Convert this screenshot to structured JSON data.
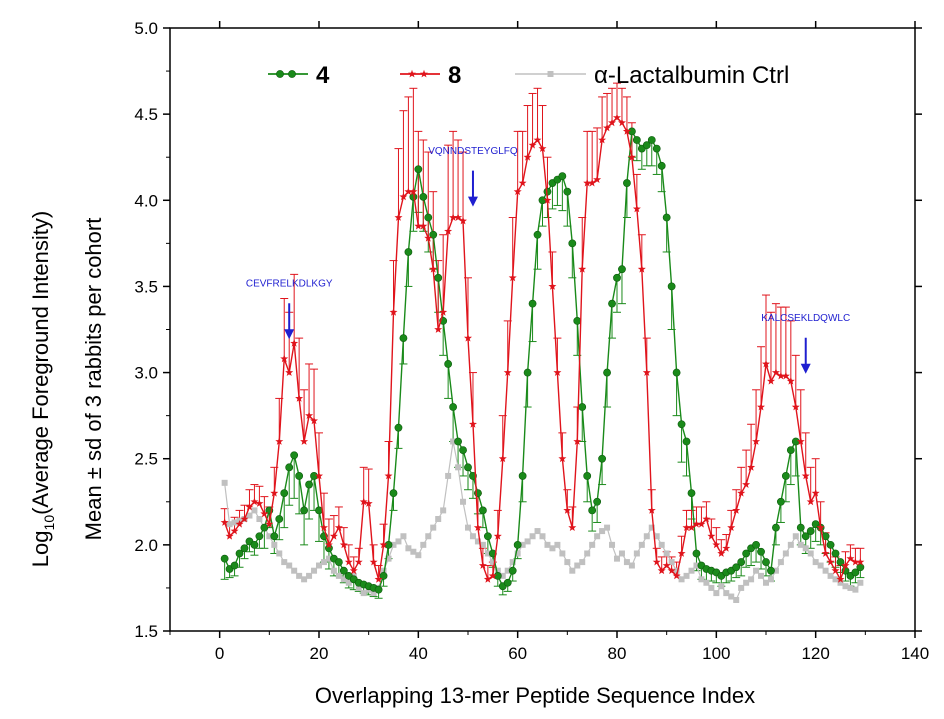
{
  "chart_data": {
    "type": "line",
    "xlabel": "Overlapping 13-mer Peptide Sequence Index",
    "ylabel_line1": "Log",
    "ylabel_sub": "10",
    "ylabel_line1_rest": "(Average Foreground Intensity)",
    "ylabel_line2": "Mean ± sd of 3 rabbits per cohort",
    "xlim": [
      -10,
      140
    ],
    "ylim": [
      1.5,
      5.0
    ],
    "xticks": [
      0,
      20,
      40,
      60,
      80,
      100,
      120,
      140
    ],
    "yticks": [
      1.5,
      2.0,
      2.5,
      3.0,
      3.5,
      4.0,
      4.5,
      5.0
    ],
    "xtick_labels": [
      "0",
      "20",
      "40",
      "60",
      "80",
      "100",
      "120",
      "140"
    ],
    "ytick_labels": [
      "1.5",
      "2.0",
      "2.5",
      "3.0",
      "3.5",
      "4.0",
      "4.5",
      "5.0"
    ],
    "legend_placement": "top",
    "series": [
      {
        "name": "4",
        "color": "#1a8a1a",
        "marker": "circle",
        "x": [
          1,
          2,
          3,
          4,
          5,
          6,
          7,
          8,
          9,
          10,
          11,
          12,
          13,
          14,
          15,
          16,
          17,
          18,
          19,
          20,
          21,
          22,
          23,
          24,
          25,
          26,
          27,
          28,
          29,
          30,
          31,
          32,
          33,
          34,
          35,
          36,
          37,
          38,
          39,
          40,
          41,
          42,
          43,
          44,
          45,
          46,
          47,
          48,
          49,
          50,
          51,
          52,
          53,
          54,
          55,
          56,
          57,
          58,
          59,
          60,
          61,
          62,
          63,
          64,
          65,
          66,
          67,
          68,
          69,
          70,
          71,
          72,
          73,
          74,
          75,
          76,
          77,
          78,
          79,
          80,
          81,
          82,
          83,
          84,
          85,
          86,
          87,
          88,
          89,
          90,
          91,
          92,
          93,
          94,
          95,
          96,
          97,
          98,
          99,
          100,
          101,
          102,
          103,
          104,
          105,
          106,
          107,
          108,
          109,
          110,
          111,
          112,
          113,
          114,
          115,
          116,
          117,
          118,
          119,
          120,
          121,
          122,
          123,
          124,
          125,
          126,
          127,
          128,
          129
        ],
        "y": [
          1.92,
          1.86,
          1.88,
          1.95,
          1.98,
          2.02,
          2.0,
          2.05,
          2.1,
          2.2,
          2.05,
          2.15,
          2.3,
          2.45,
          2.52,
          2.4,
          2.2,
          2.35,
          2.4,
          2.2,
          2.05,
          1.98,
          1.92,
          1.9,
          1.85,
          1.82,
          1.8,
          1.78,
          1.77,
          1.76,
          1.75,
          1.74,
          1.82,
          2.0,
          2.3,
          2.68,
          3.2,
          3.7,
          4.02,
          4.18,
          4.02,
          3.9,
          3.8,
          3.55,
          3.3,
          3.05,
          2.8,
          2.6,
          2.55,
          2.45,
          2.4,
          2.3,
          2.2,
          2.05,
          1.95,
          1.82,
          1.76,
          1.78,
          1.85,
          2.0,
          2.4,
          3.0,
          3.4,
          3.8,
          4.0,
          4.05,
          4.1,
          4.12,
          4.14,
          4.05,
          3.75,
          3.3,
          2.8,
          2.4,
          2.2,
          2.25,
          2.5,
          3.0,
          3.4,
          3.55,
          3.6,
          4.1,
          4.4,
          4.35,
          4.3,
          4.32,
          4.35,
          4.3,
          4.2,
          3.9,
          3.5,
          3.0,
          2.7,
          2.6,
          2.3,
          1.95,
          1.88,
          1.86,
          1.85,
          1.84,
          1.82,
          1.84,
          1.85,
          1.87,
          1.9,
          1.95,
          1.98,
          2.0,
          1.96,
          1.9,
          1.85,
          2.1,
          2.25,
          2.4,
          2.55,
          2.6,
          2.1,
          2.05,
          2.08,
          2.12,
          2.1,
          2.05,
          2.0,
          1.95,
          1.9,
          1.85,
          1.82,
          1.84,
          1.87
        ],
        "sd": [
          0.12,
          0.05,
          0.06,
          0.08,
          0.06,
          0.06,
          0.06,
          0.07,
          0.12,
          0.1,
          0.1,
          0.12,
          0.2,
          0.22,
          0.25,
          0.22,
          0.2,
          0.2,
          0.2,
          0.18,
          0.15,
          0.12,
          0.1,
          0.08,
          0.07,
          0.07,
          0.06,
          0.05,
          0.05,
          0.05,
          0.05,
          0.05,
          0.06,
          0.08,
          0.1,
          0.12,
          0.15,
          0.2,
          0.2,
          0.25,
          0.2,
          0.2,
          0.2,
          0.2,
          0.2,
          0.2,
          0.2,
          0.15,
          0.15,
          0.13,
          0.13,
          0.12,
          0.1,
          0.1,
          0.08,
          0.06,
          0.05,
          0.05,
          0.06,
          0.08,
          0.15,
          0.2,
          0.22,
          0.2,
          0.15,
          0.15,
          0.15,
          0.15,
          0.2,
          0.2,
          0.2,
          0.2,
          0.2,
          0.15,
          0.12,
          0.12,
          0.15,
          0.2,
          0.2,
          0.2,
          0.2,
          0.2,
          0.15,
          0.12,
          0.12,
          0.12,
          0.15,
          0.15,
          0.15,
          0.2,
          0.25,
          0.25,
          0.22,
          0.2,
          0.15,
          0.1,
          0.08,
          0.07,
          0.06,
          0.06,
          0.06,
          0.06,
          0.06,
          0.06,
          0.08,
          0.08,
          0.1,
          0.1,
          0.1,
          0.08,
          0.06,
          0.1,
          0.12,
          0.15,
          0.2,
          0.2,
          0.1,
          0.1,
          0.1,
          0.1,
          0.1,
          0.1,
          0.1,
          0.08,
          0.06,
          0.06,
          0.06,
          0.06,
          0.06
        ]
      },
      {
        "name": "8",
        "color": "#e0141c",
        "marker": "star",
        "x": [
          1,
          2,
          3,
          4,
          5,
          6,
          7,
          8,
          9,
          10,
          11,
          12,
          13,
          14,
          15,
          16,
          17,
          18,
          19,
          20,
          21,
          22,
          23,
          24,
          25,
          26,
          27,
          28,
          29,
          30,
          31,
          32,
          33,
          34,
          35,
          36,
          37,
          38,
          39,
          40,
          41,
          42,
          43,
          44,
          45,
          46,
          47,
          48,
          49,
          50,
          51,
          52,
          53,
          54,
          55,
          56,
          57,
          58,
          59,
          60,
          61,
          62,
          63,
          64,
          65,
          66,
          67,
          68,
          69,
          70,
          71,
          72,
          73,
          74,
          75,
          76,
          77,
          78,
          79,
          80,
          81,
          82,
          83,
          84,
          85,
          86,
          87,
          88,
          89,
          90,
          91,
          92,
          93,
          94,
          95,
          96,
          97,
          98,
          99,
          100,
          101,
          102,
          103,
          104,
          105,
          106,
          107,
          108,
          109,
          110,
          111,
          112,
          113,
          114,
          115,
          116,
          117,
          118,
          119,
          120,
          121,
          122,
          123,
          124,
          125,
          126,
          127,
          128,
          129
        ],
        "y": [
          2.13,
          2.05,
          2.08,
          2.12,
          2.15,
          2.22,
          2.25,
          2.24,
          2.18,
          2.12,
          2.3,
          2.6,
          3.08,
          3.0,
          3.17,
          2.85,
          2.6,
          2.75,
          2.72,
          2.4,
          2.1,
          2.0,
          2.05,
          2.1,
          2.0,
          1.9,
          1.85,
          1.9,
          2.25,
          2.24,
          1.9,
          1.8,
          2.0,
          2.4,
          3.35,
          3.9,
          4.02,
          4.05,
          4.05,
          3.85,
          3.85,
          3.78,
          3.6,
          3.25,
          3.35,
          3.82,
          3.9,
          3.9,
          3.88,
          3.2,
          2.7,
          2.1,
          1.88,
          1.8,
          1.82,
          2.05,
          2.5,
          3.0,
          3.55,
          4.05,
          4.1,
          4.25,
          4.32,
          4.35,
          4.3,
          4.0,
          3.5,
          3.0,
          2.5,
          2.2,
          2.1,
          2.6,
          3.6,
          4.1,
          4.1,
          4.12,
          4.35,
          4.42,
          4.45,
          4.48,
          4.45,
          4.4,
          4.25,
          3.95,
          3.6,
          3.0,
          2.2,
          1.9,
          1.85,
          1.88,
          1.85,
          1.82,
          1.95,
          2.1,
          2.1,
          2.12,
          2.12,
          2.15,
          2.05,
          2.0,
          1.95,
          1.98,
          2.1,
          2.2,
          2.3,
          2.35,
          2.45,
          2.6,
          2.8,
          3.05,
          2.95,
          3.0,
          2.98,
          2.98,
          2.95,
          2.8,
          2.6,
          2.4,
          2.25,
          2.3,
          2.1,
          1.95,
          1.9,
          1.85,
          1.8,
          1.88,
          1.92,
          1.9,
          1.9
        ],
        "sd": [
          0.08,
          0.08,
          0.08,
          0.08,
          0.08,
          0.1,
          0.1,
          0.1,
          0.1,
          0.1,
          0.15,
          0.25,
          0.35,
          0.35,
          0.4,
          0.35,
          0.3,
          0.3,
          0.3,
          0.25,
          0.2,
          0.15,
          0.12,
          0.12,
          0.1,
          0.1,
          0.08,
          0.08,
          0.2,
          0.2,
          0.1,
          0.08,
          0.12,
          0.2,
          0.3,
          0.4,
          0.5,
          0.55,
          0.6,
          0.55,
          0.5,
          0.5,
          0.45,
          0.4,
          0.45,
          0.5,
          0.5,
          0.45,
          0.4,
          0.35,
          0.3,
          0.2,
          0.1,
          0.08,
          0.08,
          0.15,
          0.25,
          0.3,
          0.35,
          0.35,
          0.3,
          0.3,
          0.3,
          0.3,
          0.25,
          0.25,
          0.2,
          0.2,
          0.15,
          0.12,
          0.12,
          0.2,
          0.3,
          0.3,
          0.3,
          0.3,
          0.25,
          0.2,
          0.2,
          0.2,
          0.2,
          0.2,
          0.2,
          0.2,
          0.2,
          0.2,
          0.12,
          0.08,
          0.08,
          0.08,
          0.08,
          0.08,
          0.1,
          0.1,
          0.1,
          0.1,
          0.1,
          0.1,
          0.1,
          0.1,
          0.08,
          0.08,
          0.1,
          0.12,
          0.15,
          0.2,
          0.25,
          0.3,
          0.35,
          0.4,
          0.4,
          0.4,
          0.4,
          0.4,
          0.35,
          0.3,
          0.3,
          0.25,
          0.2,
          0.2,
          0.15,
          0.12,
          0.1,
          0.08,
          0.08,
          0.08,
          0.08,
          0.08,
          0.08
        ]
      },
      {
        "name": "α-Lactalbumin Ctrl",
        "color": "#c0c0c0",
        "marker": "square",
        "x": [
          1,
          2,
          3,
          4,
          5,
          6,
          7,
          8,
          9,
          10,
          11,
          12,
          13,
          14,
          15,
          16,
          17,
          18,
          19,
          20,
          21,
          22,
          23,
          24,
          25,
          26,
          27,
          28,
          29,
          30,
          31,
          32,
          33,
          34,
          35,
          36,
          37,
          38,
          39,
          40,
          41,
          42,
          43,
          44,
          45,
          46,
          47,
          48,
          49,
          50,
          51,
          52,
          53,
          54,
          55,
          56,
          57,
          58,
          59,
          60,
          61,
          62,
          63,
          64,
          65,
          66,
          67,
          68,
          69,
          70,
          71,
          72,
          73,
          74,
          75,
          76,
          77,
          78,
          79,
          80,
          81,
          82,
          83,
          84,
          85,
          86,
          87,
          88,
          89,
          90,
          91,
          92,
          93,
          94,
          95,
          96,
          97,
          98,
          99,
          100,
          101,
          102,
          103,
          104,
          105,
          106,
          107,
          108,
          109,
          110,
          111,
          112,
          113,
          114,
          115,
          116,
          117,
          118,
          119,
          120,
          121,
          122,
          123,
          124,
          125,
          126,
          127,
          128,
          129
        ],
        "y": [
          2.36,
          2.12,
          2.13,
          2.14,
          2.15,
          2.17,
          2.2,
          2.15,
          2.1,
          2.05,
          2.0,
          1.95,
          1.9,
          1.88,
          1.85,
          1.82,
          1.8,
          1.82,
          1.85,
          1.88,
          1.9,
          1.92,
          1.85,
          1.82,
          1.8,
          1.78,
          1.82,
          1.75,
          1.72,
          1.74,
          1.72,
          1.75,
          1.85,
          1.92,
          2.0,
          2.02,
          2.05,
          1.98,
          1.96,
          1.94,
          2.0,
          2.05,
          2.1,
          2.15,
          2.2,
          2.4,
          2.6,
          2.45,
          2.25,
          2.1,
          2.05,
          2.02,
          2.0,
          1.95,
          1.9,
          1.85,
          1.82,
          1.85,
          1.9,
          1.95,
          2.0,
          2.02,
          2.05,
          2.08,
          2.05,
          2.0,
          1.98,
          2.0,
          1.95,
          1.9,
          1.85,
          1.88,
          1.9,
          1.95,
          2.0,
          2.05,
          2.08,
          2.1,
          2.0,
          1.92,
          1.95,
          1.9,
          1.88,
          1.95,
          2.0,
          2.05,
          2.1,
          2.05,
          2.0,
          1.95,
          1.9,
          1.85,
          1.8,
          1.82,
          1.85,
          1.88,
          1.8,
          1.78,
          1.75,
          1.72,
          1.76,
          1.72,
          1.7,
          1.68,
          1.75,
          1.78,
          1.8,
          1.85,
          1.82,
          1.78,
          1.8,
          1.85,
          1.9,
          1.95,
          2.0,
          2.05,
          2.0,
          1.98,
          1.95,
          1.9,
          1.88,
          1.85,
          1.82,
          1.8,
          1.78,
          1.76,
          1.75,
          1.74,
          1.78
        ]
      }
    ],
    "annotations": [
      {
        "text": "CEVFRELKDLKGY",
        "x": 14,
        "y_tip": 3.17,
        "text_y": 3.5
      },
      {
        "text": "VQNNDSTEYGLFQ",
        "x": 51,
        "y_tip": 3.94,
        "text_y": 4.27
      },
      {
        "text": "KALCSEKLDQWLC",
        "x": 118,
        "y_tip": 2.97,
        "text_y": 3.3
      }
    ],
    "arrow_color": "#1f1fd0"
  }
}
